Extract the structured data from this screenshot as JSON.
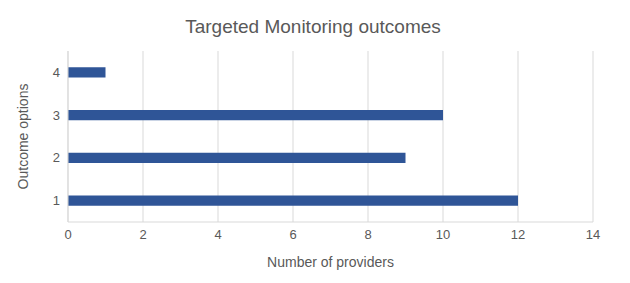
{
  "chart_data": {
    "type": "bar",
    "orientation": "horizontal",
    "title": "Targeted Monitoring outcomes",
    "x_label": "Number of providers",
    "y_label": "Outcome options",
    "categories": [
      "1",
      "2",
      "3",
      "4"
    ],
    "values": [
      12,
      9,
      10,
      1
    ],
    "color": "#2f5597",
    "xlim": [
      0,
      14
    ],
    "xticks": [
      0,
      2,
      4,
      6,
      8,
      10,
      12,
      14
    ],
    "grid": true
  }
}
